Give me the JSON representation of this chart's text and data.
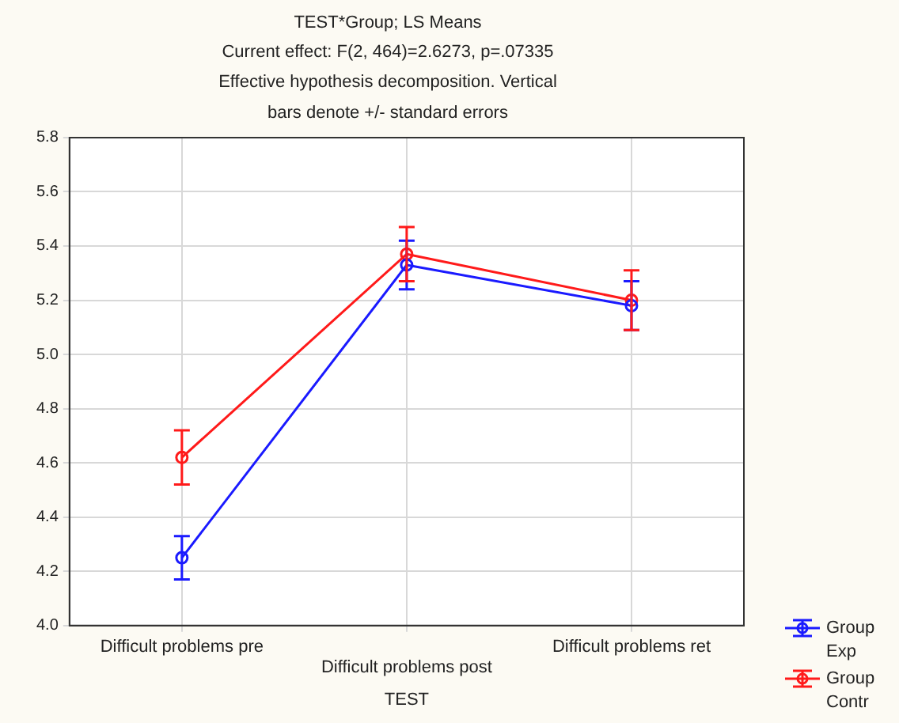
{
  "chart_data": {
    "type": "line",
    "title": "TEST*Group; LS Means",
    "subtitle": "Current effect: F(2, 464)=2.6273, p=.07335 Effective hypothesis decomposition. Vertical bars denote +/- standard errors",
    "xlabel": "TEST",
    "categories": [
      "Difficult problems pre",
      "Difficult problems post",
      "Difficult problems ret"
    ],
    "series": [
      {
        "name": "Group Exp",
        "color": "#1a1aff",
        "values": [
          4.25,
          5.33,
          5.18
        ],
        "errors": [
          0.08,
          0.09,
          0.09
        ]
      },
      {
        "name": "Group Contr",
        "color": "#ff1a1a",
        "values": [
          4.62,
          5.37,
          5.2
        ],
        "errors": [
          0.1,
          0.1,
          0.11
        ]
      }
    ],
    "ylim": [
      4.0,
      5.8
    ],
    "yticks": [
      {
        "value": 4.0,
        "label": "4.0"
      },
      {
        "value": 4.2,
        "label": "4.2"
      },
      {
        "value": 4.4,
        "label": "4.4"
      },
      {
        "value": 4.6,
        "label": "4.6"
      },
      {
        "value": 4.8,
        "label": "4.8"
      },
      {
        "value": 5.0,
        "label": "5.0"
      },
      {
        "value": 5.2,
        "label": "5.2"
      },
      {
        "value": 5.4,
        "label": "5.4"
      },
      {
        "value": 5.6,
        "label": "5.6"
      },
      {
        "value": 5.8,
        "label": "5.8"
      }
    ],
    "grid": true,
    "legend": "bottom right",
    "marker": "circle",
    "line_style": "solid"
  }
}
